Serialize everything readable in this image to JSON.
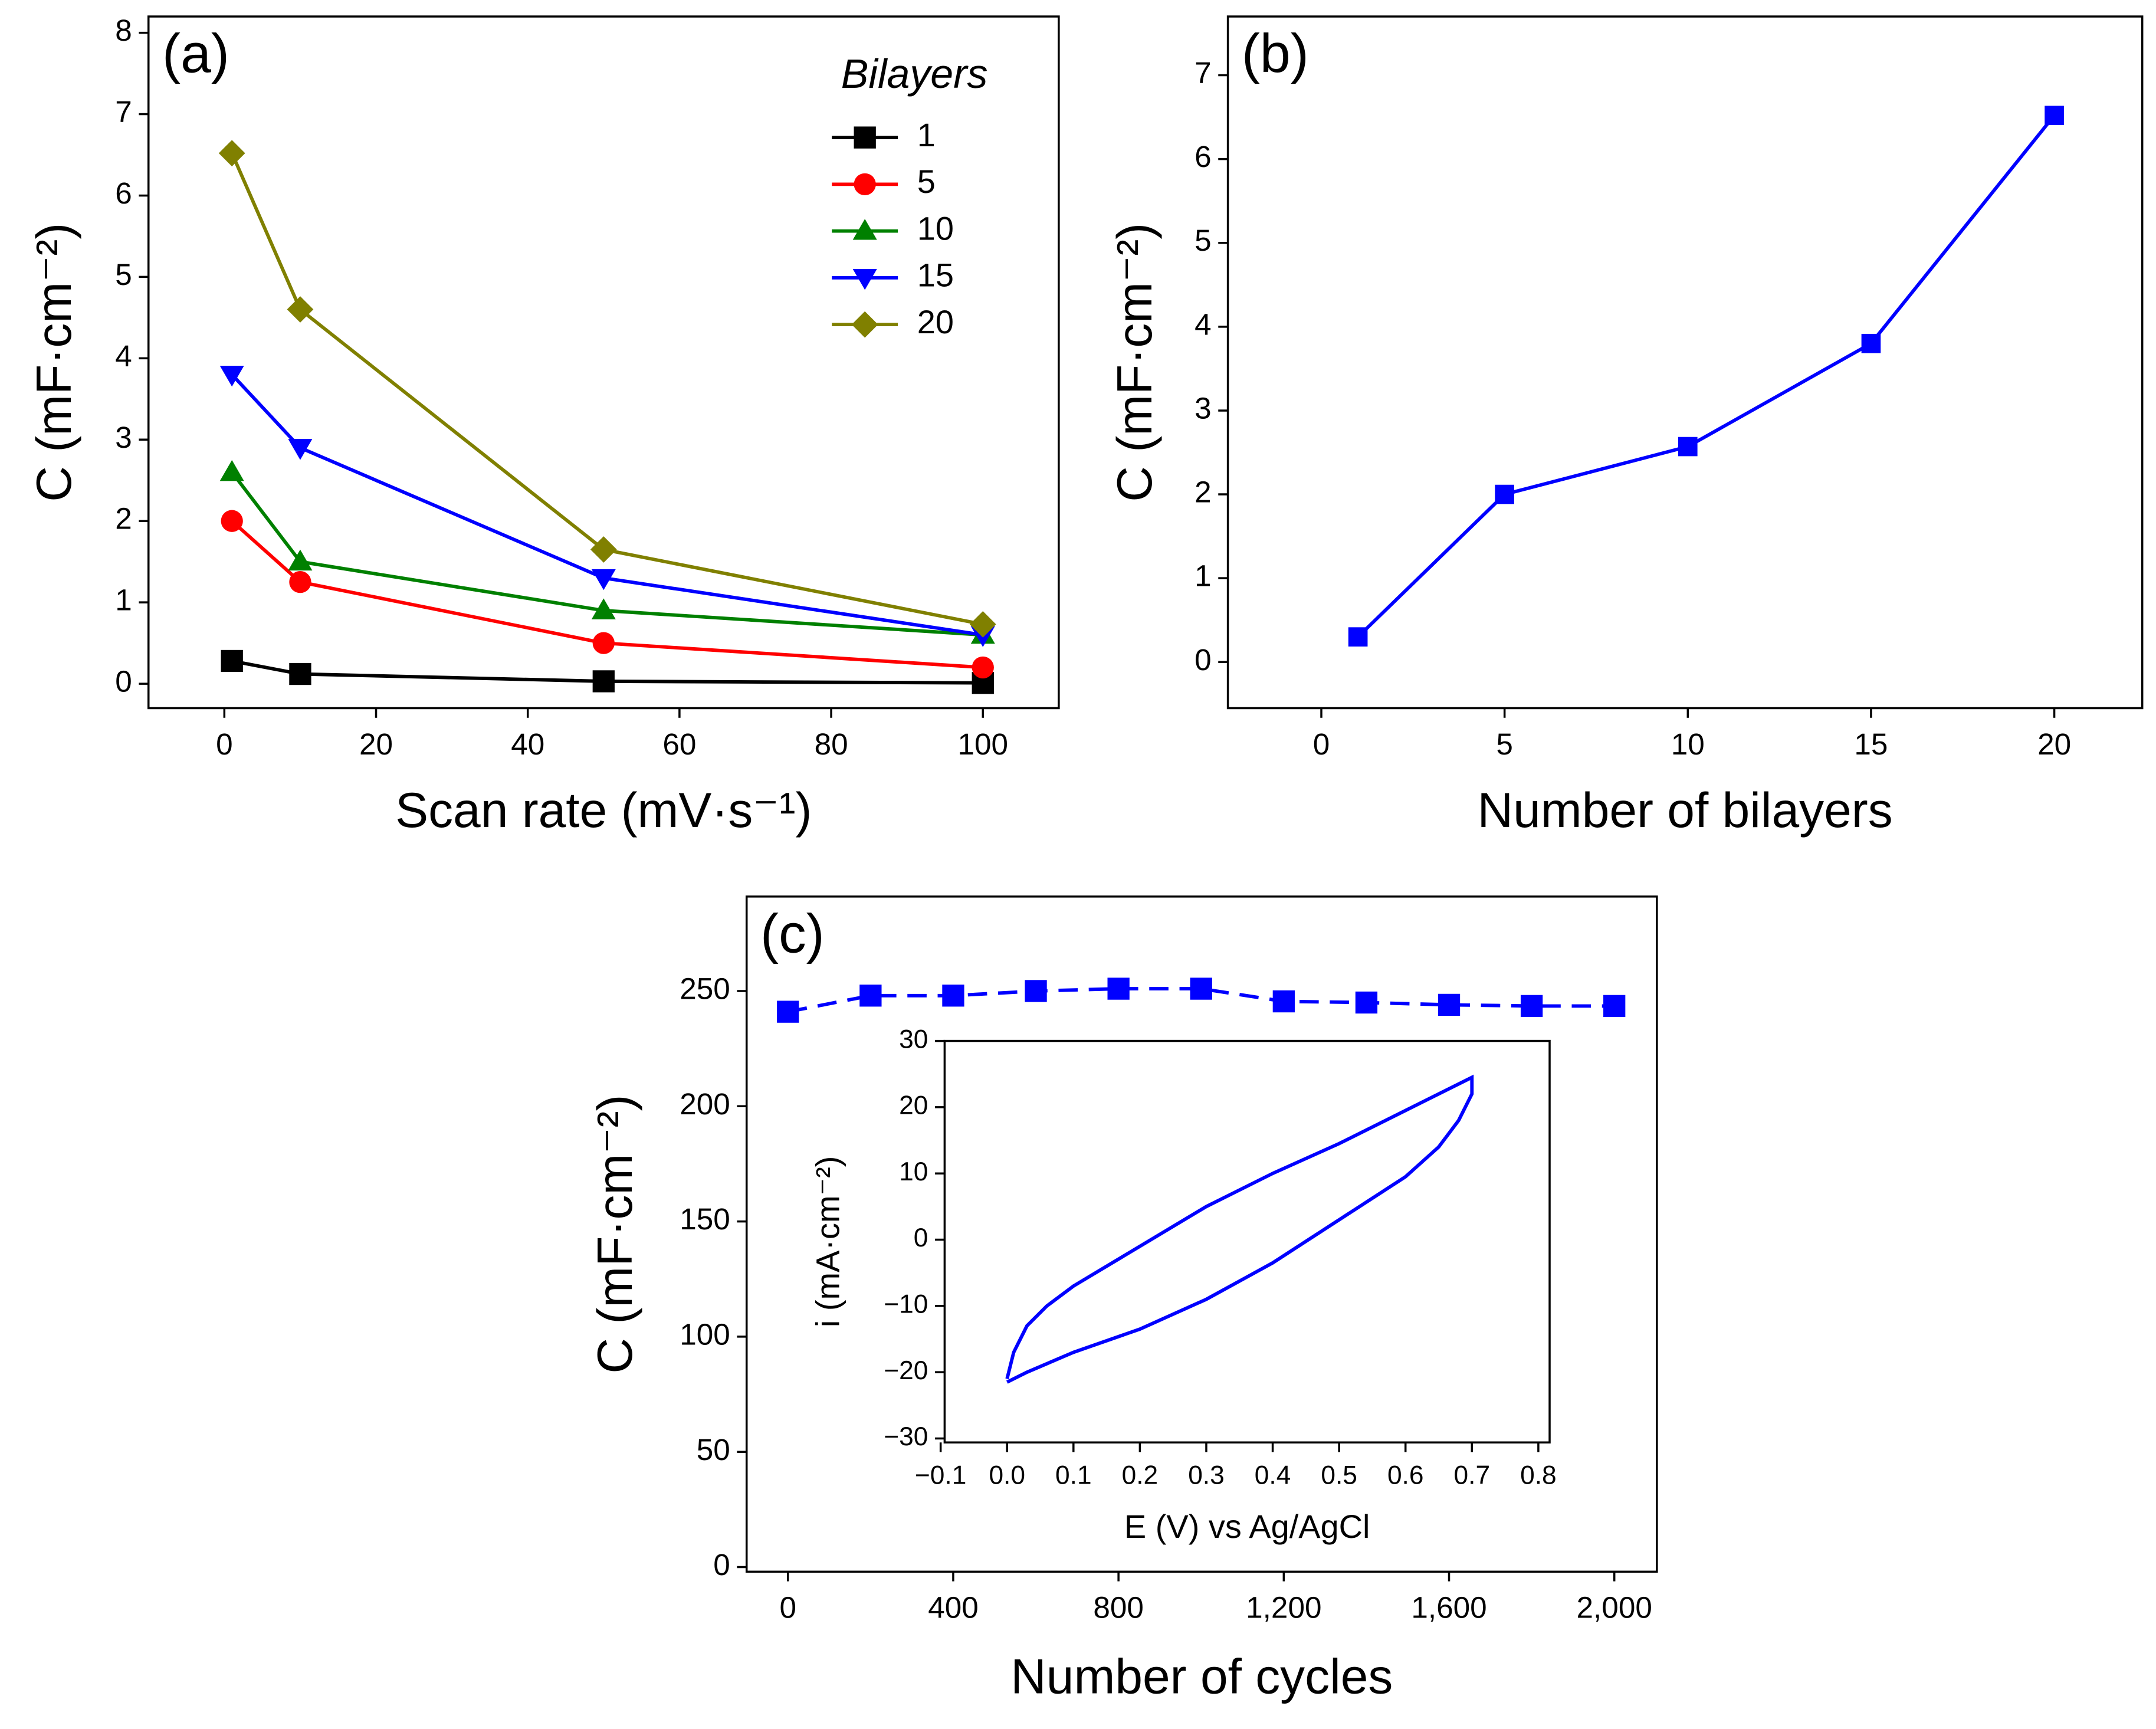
{
  "chart_data": [
    {
      "type": "line",
      "title": "(a)",
      "x_label": "Scan rate (mV·s⁻¹)",
      "y_label": "C (mF·cm⁻²)",
      "x": [
        1,
        10,
        50,
        100
      ],
      "series": [
        {
          "name": "1",
          "color": "#000000",
          "marker": "square",
          "values": [
            0.28,
            0.12,
            0.03,
            0.01
          ]
        },
        {
          "name": "5",
          "color": "#ff0000",
          "marker": "circle",
          "values": [
            2.0,
            1.25,
            0.5,
            0.2
          ]
        },
        {
          "name": "10",
          "color": "#008000",
          "marker": "triangle-up",
          "values": [
            2.6,
            1.5,
            0.9,
            0.6
          ]
        },
        {
          "name": "15",
          "color": "#0000ff",
          "marker": "triangle-down",
          "values": [
            3.8,
            2.9,
            1.3,
            0.6
          ]
        },
        {
          "name": "20",
          "color": "#808000",
          "marker": "diamond",
          "values": [
            6.52,
            4.6,
            1.65,
            0.73
          ]
        }
      ],
      "legend_title": "Bilayers",
      "legend": "upper right",
      "xlim": [
        -10,
        110
      ],
      "xticks": [
        0,
        20,
        40,
        60,
        80,
        100
      ],
      "ylim": [
        -0.3,
        8.2
      ],
      "yticks": [
        0,
        1,
        2,
        3,
        4,
        5,
        6,
        7,
        8
      ]
    },
    {
      "type": "line",
      "title": "(b)",
      "x_label": "Number of bilayers",
      "y_label": "C (mF·cm⁻²)",
      "x": [
        1,
        5,
        10,
        15,
        20
      ],
      "series": [
        {
          "color": "#0000ff",
          "marker": "square",
          "values": [
            0.3,
            2.0,
            2.57,
            3.8,
            6.52
          ]
        }
      ],
      "xlim": [
        -2.55,
        22.4
      ],
      "xticks": [
        0,
        5,
        10,
        15,
        20
      ],
      "ylim": [
        -0.55,
        7.7
      ],
      "yticks": [
        0,
        1,
        2,
        3,
        4,
        5,
        6,
        7
      ]
    },
    {
      "type": "line",
      "title": "(c)",
      "x_label": "Number of cycles",
      "y_label": "C (mF·cm⁻²)",
      "x": [
        0,
        200,
        400,
        600,
        800,
        1000,
        1200,
        1400,
        1600,
        1800,
        2000
      ],
      "series": [
        {
          "color": "#0000ff",
          "marker": "square",
          "line_style": "dashed",
          "values": [
            241,
            248,
            248,
            250,
            251,
            251,
            245.5,
            245,
            244,
            243.5,
            243.5
          ]
        }
      ],
      "xlim": [
        -100,
        2103
      ],
      "xticks": [
        0,
        400,
        800,
        {
          "value": 1200,
          "label": "1,200"
        },
        {
          "value": 1600,
          "label": "1,600"
        },
        {
          "value": 2000,
          "label": "2,000"
        }
      ],
      "ylim": [
        -2,
        291
      ],
      "yticks": [
        0,
        50,
        100,
        150,
        200,
        250
      ]
    },
    {
      "type": "line",
      "x_label": "E (V) vs Ag/AgCl",
      "y_label": "i (mA·cm⁻²)",
      "x": [
        0,
        0.01,
        0.03,
        0.06,
        0.1,
        0.2,
        0.3,
        0.4,
        0.5,
        0.6,
        0.7,
        0.7,
        0.68,
        0.65,
        0.6,
        0.5,
        0.4,
        0.3,
        0.2,
        0.1,
        0.03,
        0
      ],
      "series": [
        {
          "color": "#0000ff",
          "values": [
            -21,
            -17,
            -13,
            -10,
            -7,
            -1,
            5,
            10,
            14.5,
            19.5,
            24.5,
            22,
            18,
            14,
            9.5,
            3,
            -3.5,
            -9,
            -13.5,
            -17,
            -20,
            -21.5
          ]
        }
      ],
      "xlim": [
        -0.094,
        0.817
      ],
      "xticks": [
        {
          "value": -0.1,
          "label": "−0.1"
        },
        {
          "value": 0,
          "label": "0.0"
        },
        0.1,
        0.2,
        0.3,
        0.4,
        0.5,
        0.6,
        0.7,
        0.8
      ],
      "ylim": [
        -30.6,
        30
      ],
      "yticks": [
        {
          "value": -30,
          "label": "−30"
        },
        {
          "value": -20,
          "label": "−20"
        },
        {
          "value": -10,
          "label": "−10"
        },
        0,
        10,
        20,
        30
      ]
    }
  ]
}
